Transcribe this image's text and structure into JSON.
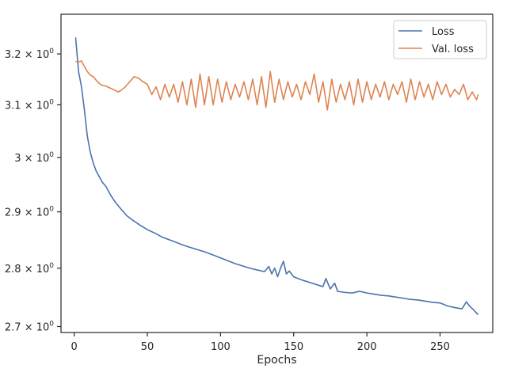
{
  "chart_data": {
    "type": "line",
    "yscale": "log",
    "xlabel": "Epochs",
    "ylabel": "",
    "xlim": [
      -9,
      286
    ],
    "ylim": [
      2.69,
      3.28
    ],
    "xticks": [
      0,
      50,
      100,
      150,
      200,
      250
    ],
    "yticks": [
      {
        "value": 2.7,
        "mantissa": "2.7"
      },
      {
        "value": 2.8,
        "mantissa": "2.8"
      },
      {
        "value": 2.9,
        "mantissa": "2.9"
      },
      {
        "value": 3.0,
        "mantissa": "3"
      },
      {
        "value": 3.1,
        "mantissa": "3.1"
      },
      {
        "value": 3.2,
        "mantissa": "3.2"
      }
    ],
    "ytick_base": "× 10",
    "ytick_exp": "0",
    "legend_position": "top-right",
    "grid": false,
    "series": [
      {
        "name": "Loss",
        "color": "#4c72b0",
        "x": [
          1,
          3,
          5,
          7,
          9,
          11,
          13,
          15,
          17,
          19,
          22,
          25,
          28,
          32,
          36,
          40,
          45,
          50,
          55,
          60,
          65,
          70,
          75,
          80,
          85,
          90,
          95,
          100,
          105,
          110,
          115,
          120,
          125,
          130,
          133,
          135,
          137,
          139,
          141,
          143,
          145,
          147,
          150,
          155,
          160,
          165,
          170,
          172,
          175,
          178,
          180,
          185,
          190,
          195,
          200,
          205,
          210,
          215,
          220,
          225,
          230,
          235,
          240,
          245,
          250,
          255,
          260,
          265,
          268,
          270,
          273,
          276
        ],
        "y": [
          3.233,
          3.165,
          3.135,
          3.09,
          3.04,
          3.01,
          2.99,
          2.975,
          2.965,
          2.955,
          2.945,
          2.93,
          2.918,
          2.905,
          2.893,
          2.885,
          2.876,
          2.868,
          2.862,
          2.855,
          2.85,
          2.845,
          2.84,
          2.836,
          2.832,
          2.828,
          2.823,
          2.818,
          2.813,
          2.808,
          2.804,
          2.8,
          2.797,
          2.794,
          2.803,
          2.79,
          2.8,
          2.785,
          2.8,
          2.812,
          2.79,
          2.795,
          2.785,
          2.78,
          2.776,
          2.772,
          2.768,
          2.782,
          2.764,
          2.774,
          2.76,
          2.758,
          2.757,
          2.76,
          2.757,
          2.755,
          2.753,
          2.752,
          2.75,
          2.748,
          2.746,
          2.745,
          2.743,
          2.741,
          2.74,
          2.735,
          2.732,
          2.73,
          2.742,
          2.735,
          2.728,
          2.72
        ]
      },
      {
        "name": "Val. loss",
        "color": "#dd8452",
        "x": [
          1,
          3,
          5,
          7,
          9,
          11,
          13,
          15,
          17,
          19,
          22,
          25,
          28,
          30,
          32,
          35,
          38,
          41,
          44,
          47,
          50,
          53,
          56,
          59,
          62,
          65,
          68,
          71,
          74,
          77,
          80,
          83,
          86,
          89,
          92,
          95,
          98,
          101,
          104,
          107,
          110,
          113,
          116,
          119,
          122,
          125,
          128,
          131,
          134,
          137,
          140,
          143,
          146,
          149,
          152,
          155,
          158,
          161,
          164,
          167,
          170,
          173,
          176,
          179,
          182,
          185,
          188,
          191,
          194,
          197,
          200,
          203,
          206,
          209,
          212,
          215,
          218,
          221,
          224,
          227,
          230,
          233,
          236,
          239,
          242,
          245,
          248,
          251,
          254,
          257,
          260,
          263,
          266,
          269,
          272,
          275,
          276
        ],
        "y": [
          3.185,
          3.184,
          3.186,
          3.175,
          3.165,
          3.158,
          3.155,
          3.148,
          3.142,
          3.138,
          3.136,
          3.132,
          3.128,
          3.125,
          3.128,
          3.135,
          3.145,
          3.155,
          3.152,
          3.145,
          3.14,
          3.12,
          3.135,
          3.11,
          3.14,
          3.115,
          3.14,
          3.105,
          3.145,
          3.1,
          3.15,
          3.095,
          3.16,
          3.1,
          3.155,
          3.1,
          3.15,
          3.105,
          3.145,
          3.11,
          3.14,
          3.115,
          3.145,
          3.11,
          3.15,
          3.1,
          3.155,
          3.095,
          3.165,
          3.105,
          3.15,
          3.11,
          3.145,
          3.115,
          3.14,
          3.11,
          3.145,
          3.12,
          3.16,
          3.105,
          3.145,
          3.09,
          3.15,
          3.105,
          3.14,
          3.11,
          3.145,
          3.1,
          3.15,
          3.105,
          3.145,
          3.11,
          3.14,
          3.115,
          3.145,
          3.11,
          3.14,
          3.12,
          3.145,
          3.105,
          3.15,
          3.11,
          3.145,
          3.115,
          3.14,
          3.11,
          3.145,
          3.12,
          3.14,
          3.115,
          3.13,
          3.12,
          3.14,
          3.11,
          3.125,
          3.11,
          3.12
        ]
      }
    ]
  }
}
